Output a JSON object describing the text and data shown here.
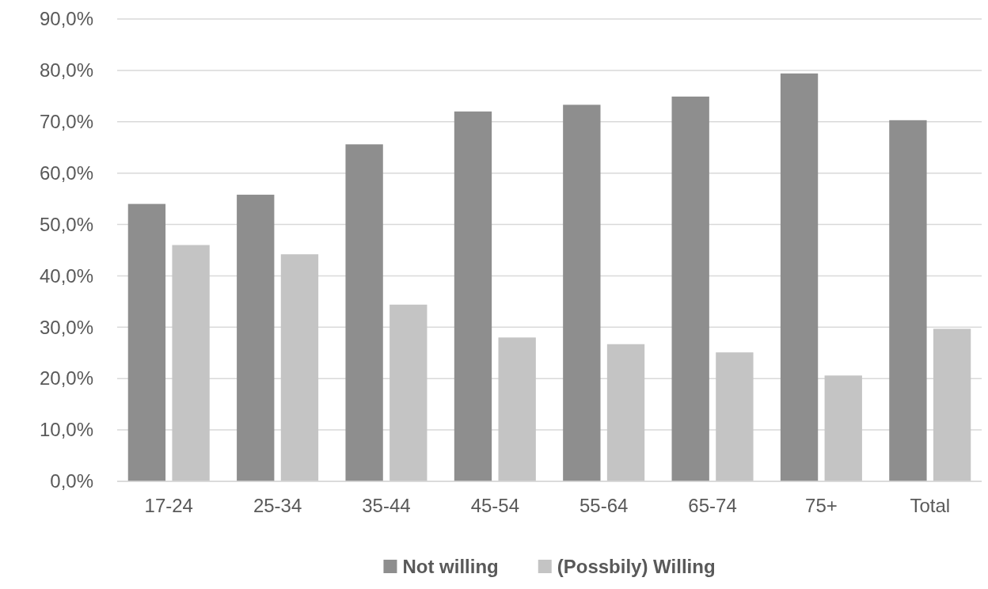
{
  "chart_data": {
    "type": "bar",
    "categories": [
      "17-24",
      "25-34",
      "35-44",
      "45-54",
      "55-64",
      "65-74",
      "75+",
      "Total"
    ],
    "series": [
      {
        "name": "Not willing",
        "color": "#8e8e8e",
        "values": [
          54.0,
          55.8,
          65.6,
          72.0,
          73.3,
          74.9,
          79.4,
          70.3
        ]
      },
      {
        "name": "(Possbily) Willing",
        "color": "#c4c4c4",
        "values": [
          46.0,
          44.2,
          34.4,
          28.0,
          26.7,
          25.1,
          20.6,
          29.7
        ]
      }
    ],
    "ylim": [
      0,
      90
    ],
    "yticks": [
      {
        "value": 0,
        "label": "0,0%"
      },
      {
        "value": 10,
        "label": "10,0%"
      },
      {
        "value": 20,
        "label": "20,0%"
      },
      {
        "value": 30,
        "label": "30,0%"
      },
      {
        "value": 40,
        "label": "40,0%"
      },
      {
        "value": 50,
        "label": "50,0%"
      },
      {
        "value": 60,
        "label": "60,0%"
      },
      {
        "value": 70,
        "label": "70,0%"
      },
      {
        "value": 80,
        "label": "80,0%"
      },
      {
        "value": 90,
        "label": "90,0%"
      }
    ],
    "grid": "y",
    "legend": "bottom"
  }
}
